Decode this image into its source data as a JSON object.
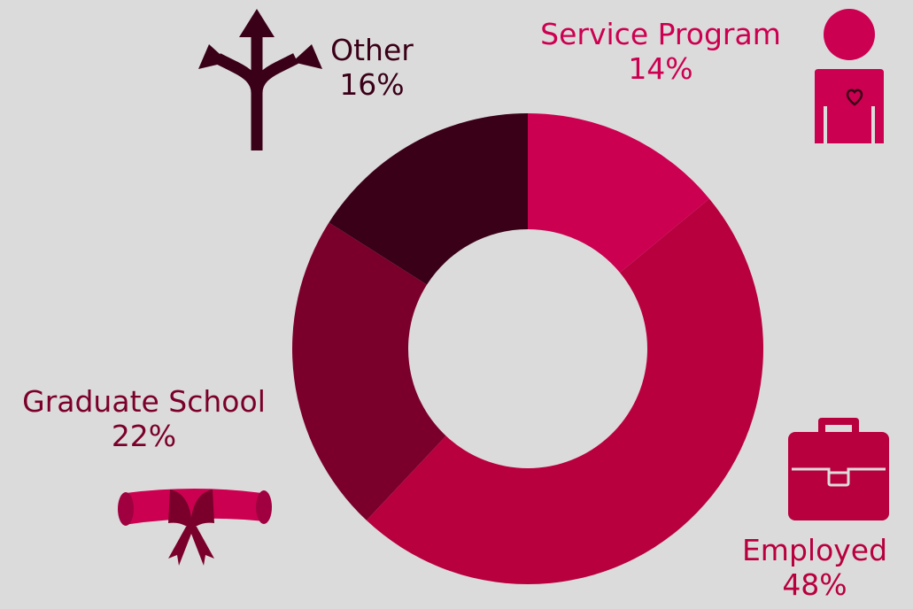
{
  "colors": {
    "background": "#dcdbdb",
    "service_program": "#cc0050",
    "employed": "#b8003f",
    "graduate_school": "#7a002b",
    "other": "#3a0018"
  },
  "icons": {
    "service_program": "volunteer-heart-person-icon",
    "employed": "briefcase-icon",
    "graduate_school": "diploma-scroll-icon",
    "other": "split-arrows-icon"
  },
  "chart_data": {
    "type": "pie",
    "categories": [
      "Service Program",
      "Employed",
      "Graduate School",
      "Other"
    ],
    "values": [
      14,
      48,
      22,
      16
    ],
    "labels": [
      "14%",
      "48%",
      "22%",
      "16%"
    ],
    "colors": [
      "#cc0050",
      "#b8003f",
      "#7a002b",
      "#3a0018"
    ],
    "legend": "none"
  }
}
